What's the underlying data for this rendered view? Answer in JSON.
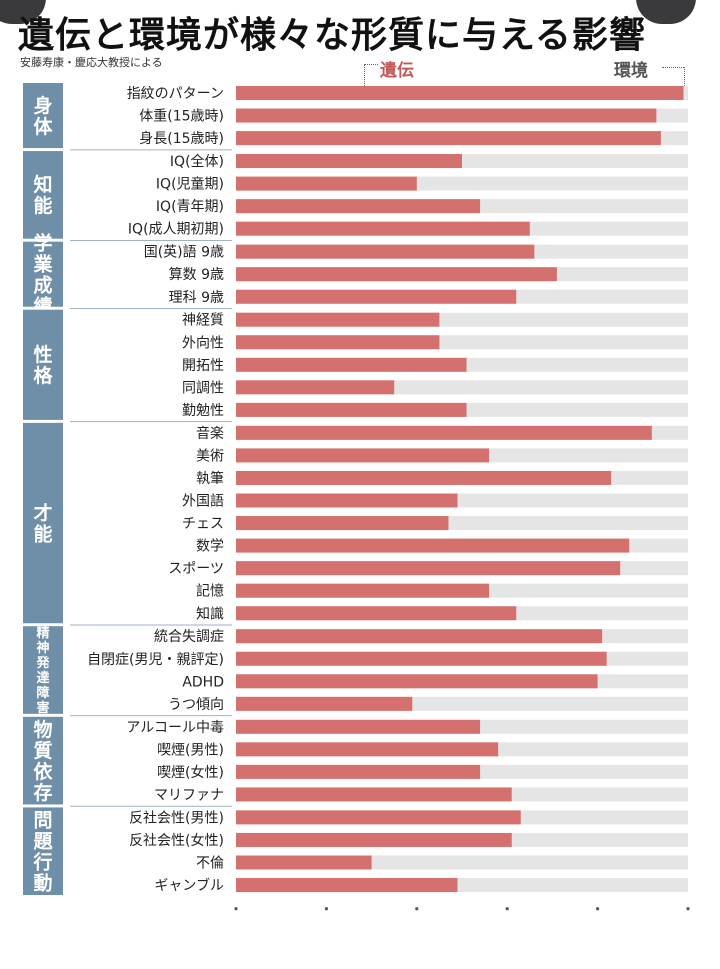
{
  "title": "遺伝と環境が様々な形質に与える影響",
  "source": "安藤寿康・慶応大教授による",
  "legend": {
    "genetic": "遺伝",
    "environment": "環境"
  },
  "colors": {
    "genetic": "#d4706e",
    "environment": "#e5e5e5",
    "group": "#6f8fa8"
  },
  "chart_data": {
    "type": "bar",
    "orientation": "horizontal",
    "stacked": true,
    "xlim": [
      0,
      100
    ],
    "series": [
      {
        "name": "遺伝"
      },
      {
        "name": "環境"
      }
    ],
    "groups": [
      {
        "label": "身体",
        "items": [
          {
            "label": "指紋のパターン",
            "genetic": 99
          },
          {
            "label": "体重(15歳時)",
            "genetic": 93
          },
          {
            "label": "身長(15歳時)",
            "genetic": 94
          }
        ]
      },
      {
        "label": "知能",
        "items": [
          {
            "label": "IQ(全体)",
            "genetic": 50
          },
          {
            "label": "IQ(児童期)",
            "genetic": 40
          },
          {
            "label": "IQ(青年期)",
            "genetic": 54
          },
          {
            "label": "IQ(成人期初期)",
            "genetic": 65
          }
        ]
      },
      {
        "label": "学業成績",
        "items": [
          {
            "label": "国(英)語 9歳",
            "genetic": 66
          },
          {
            "label": "算数 9歳",
            "genetic": 71
          },
          {
            "label": "理科 9歳",
            "genetic": 62
          }
        ]
      },
      {
        "label": "性格",
        "items": [
          {
            "label": "神経質",
            "genetic": 45
          },
          {
            "label": "外向性",
            "genetic": 45
          },
          {
            "label": "開拓性",
            "genetic": 51
          },
          {
            "label": "同調性",
            "genetic": 35
          },
          {
            "label": "勤勉性",
            "genetic": 51
          }
        ]
      },
      {
        "label": "才能",
        "items": [
          {
            "label": "音楽",
            "genetic": 92
          },
          {
            "label": "美術",
            "genetic": 56
          },
          {
            "label": "執筆",
            "genetic": 83
          },
          {
            "label": "外国語",
            "genetic": 49
          },
          {
            "label": "チェス",
            "genetic": 47
          },
          {
            "label": "数学",
            "genetic": 87
          },
          {
            "label": "スポーツ",
            "genetic": 85
          },
          {
            "label": "記憶",
            "genetic": 56
          },
          {
            "label": "知識",
            "genetic": 62
          }
        ]
      },
      {
        "label": "精神発達障害",
        "items": [
          {
            "label": "統合失調症",
            "genetic": 81
          },
          {
            "label": "自閉症(男児・親評定)",
            "genetic": 82
          },
          {
            "label": "ADHD",
            "genetic": 80
          },
          {
            "label": "うつ傾向",
            "genetic": 39
          }
        ]
      },
      {
        "label": "物質依存",
        "items": [
          {
            "label": "アルコール中毒",
            "genetic": 54
          },
          {
            "label": "喫煙(男性)",
            "genetic": 58
          },
          {
            "label": "喫煙(女性)",
            "genetic": 54
          },
          {
            "label": "マリファナ",
            "genetic": 61
          }
        ]
      },
      {
        "label": "問題行動",
        "items": [
          {
            "label": "反社会性(男性)",
            "genetic": 63
          },
          {
            "label": "反社会性(女性)",
            "genetic": 61
          },
          {
            "label": "不倫",
            "genetic": 30
          },
          {
            "label": "ギャンブル",
            "genetic": 49
          }
        ]
      }
    ]
  }
}
